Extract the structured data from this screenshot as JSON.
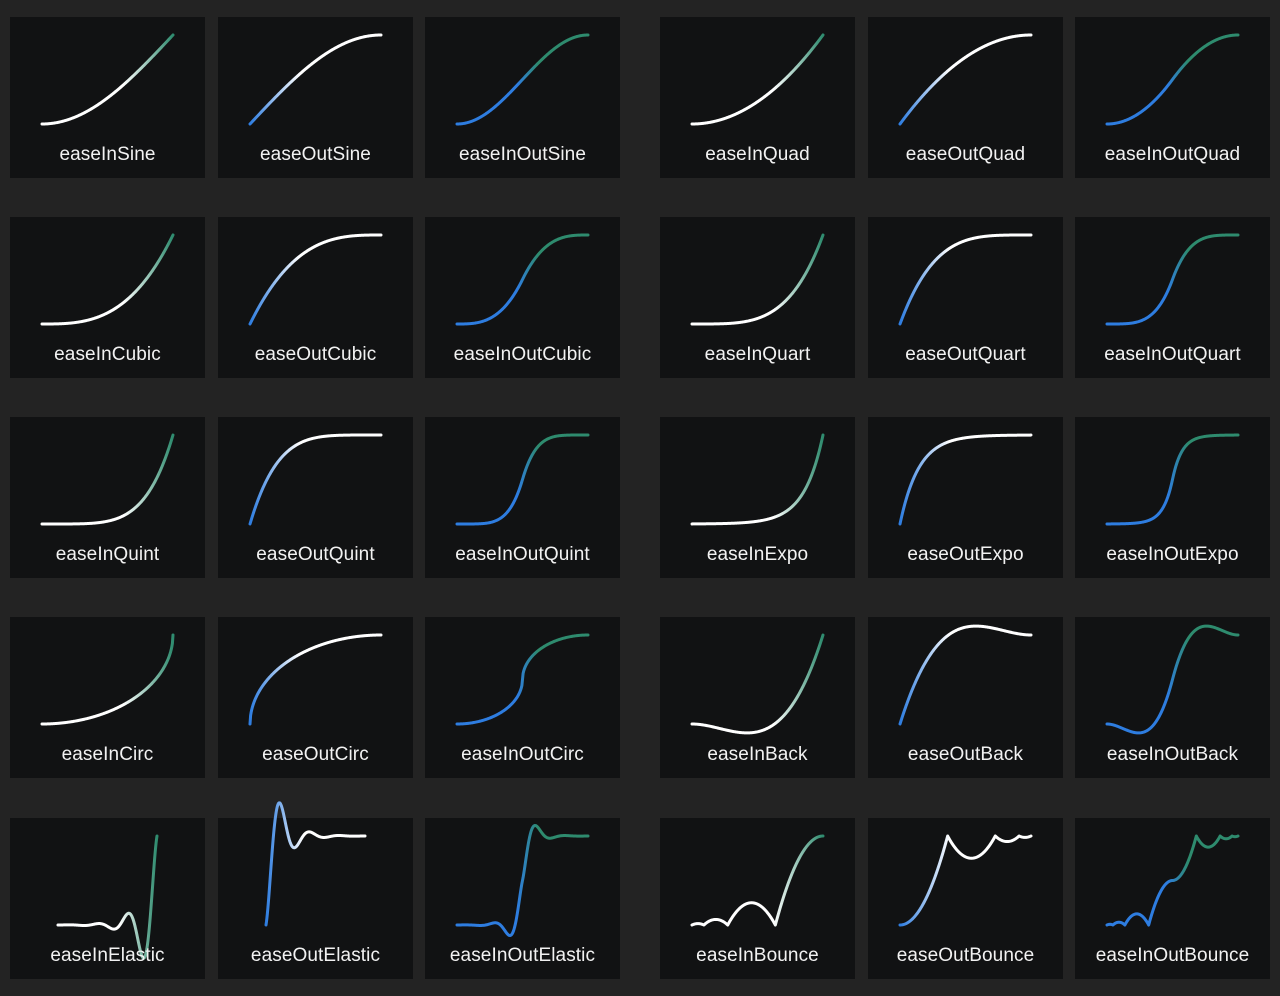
{
  "colors": {
    "background": "#232323",
    "card": "#111213",
    "label": "#f2f2f2",
    "curve_blue": "#2e7de0",
    "curve_white": "#ffffff",
    "curve_green": "#2e8b6e"
  },
  "easings": [
    {
      "label": "easeInSine",
      "fn": "easeInSine"
    },
    {
      "label": "easeOutSine",
      "fn": "easeOutSine"
    },
    {
      "label": "easeInOutSine",
      "fn": "easeInOutSine"
    },
    {
      "label": "easeInQuad",
      "fn": "easeInQuad"
    },
    {
      "label": "easeOutQuad",
      "fn": "easeOutQuad"
    },
    {
      "label": "easeInOutQuad",
      "fn": "easeInOutQuad"
    },
    {
      "label": "easeInCubic",
      "fn": "easeInCubic"
    },
    {
      "label": "easeOutCubic",
      "fn": "easeOutCubic"
    },
    {
      "label": "easeInOutCubic",
      "fn": "easeInOutCubic"
    },
    {
      "label": "easeInQuart",
      "fn": "easeInQuart"
    },
    {
      "label": "easeOutQuart",
      "fn": "easeOutQuart"
    },
    {
      "label": "easeInOutQuart",
      "fn": "easeInOutQuart"
    },
    {
      "label": "easeInQuint",
      "fn": "easeInQuint"
    },
    {
      "label": "easeOutQuint",
      "fn": "easeOutQuint"
    },
    {
      "label": "easeInOutQuint",
      "fn": "easeInOutQuint"
    },
    {
      "label": "easeInExpo",
      "fn": "easeInExpo"
    },
    {
      "label": "easeOutExpo",
      "fn": "easeOutExpo"
    },
    {
      "label": "easeInOutExpo",
      "fn": "easeInOutExpo"
    },
    {
      "label": "easeInCirc",
      "fn": "easeInCirc"
    },
    {
      "label": "easeOutCirc",
      "fn": "easeOutCirc"
    },
    {
      "label": "easeInOutCirc",
      "fn": "easeInOutCirc"
    },
    {
      "label": "easeInBack",
      "fn": "easeInBack"
    },
    {
      "label": "easeOutBack",
      "fn": "easeOutBack"
    },
    {
      "label": "easeInOutBack",
      "fn": "easeInOutBack"
    },
    {
      "label": "easeInElastic",
      "fn": "easeInElastic"
    },
    {
      "label": "easeOutElastic",
      "fn": "easeOutElastic"
    },
    {
      "label": "easeInOutElastic",
      "fn": "easeInOutElastic"
    },
    {
      "label": "easeInBounce",
      "fn": "easeInBounce"
    },
    {
      "label": "easeOutBounce",
      "fn": "easeOutBounce"
    },
    {
      "label": "easeInOutBounce",
      "fn": "easeInOutBounce"
    }
  ]
}
